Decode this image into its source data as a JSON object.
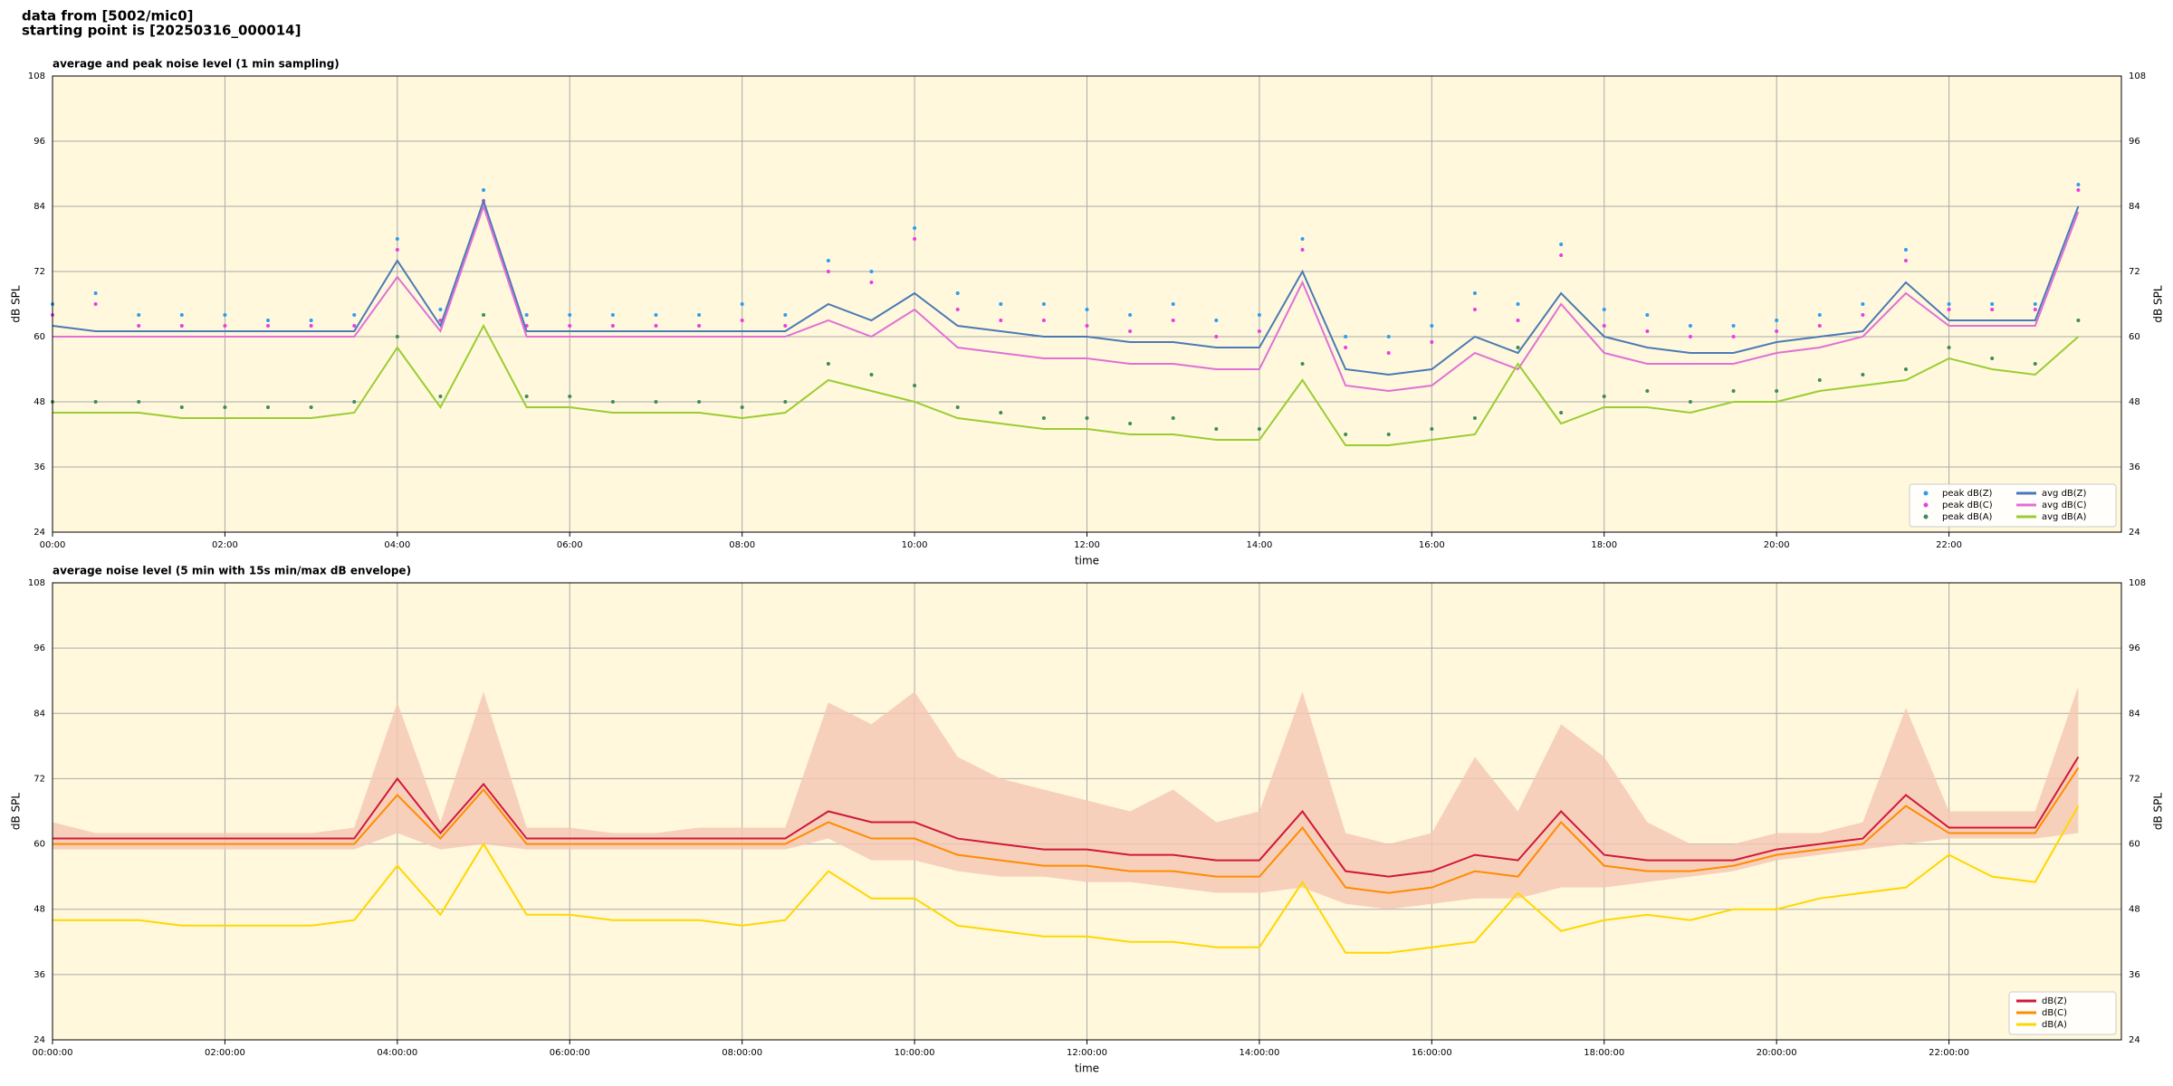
{
  "header": [
    "data from [5002/mic0]",
    "starting point is [20250316_000014]"
  ],
  "chart_data": [
    {
      "type": "line",
      "title": "average and peak noise level (1 min sampling)",
      "x_label": "time",
      "y_label": "dB SPL",
      "xlim": [
        0,
        24
      ],
      "ylim": [
        24,
        108
      ],
      "yticks": [
        24,
        36,
        48,
        60,
        72,
        84,
        96,
        108
      ],
      "xticks": [
        {
          "value": 0,
          "label": "00:00"
        },
        {
          "value": 2,
          "label": "02:00"
        },
        {
          "value": 4,
          "label": "04:00"
        },
        {
          "value": 6,
          "label": "06:00"
        },
        {
          "value": 8,
          "label": "08:00"
        },
        {
          "value": 10,
          "label": "10:00"
        },
        {
          "value": 12,
          "label": "12:00"
        },
        {
          "value": 14,
          "label": "14:00"
        },
        {
          "value": 16,
          "label": "16:00"
        },
        {
          "value": 18,
          "label": "18:00"
        },
        {
          "value": 20,
          "label": "20:00"
        },
        {
          "value": 22,
          "label": "22:00"
        }
      ],
      "grid": true,
      "legend": "lower right",
      "background": "#fff8dc",
      "x": [
        0,
        0.5,
        1,
        1.5,
        2,
        2.5,
        3,
        3.5,
        4,
        4.5,
        5,
        5.5,
        6,
        6.5,
        7,
        7.5,
        8,
        8.5,
        9,
        9.5,
        10,
        10.5,
        11,
        11.5,
        12,
        12.5,
        13,
        13.5,
        14,
        14.5,
        15,
        15.5,
        16,
        16.5,
        17,
        17.5,
        18,
        18.5,
        19,
        19.5,
        20,
        20.5,
        21,
        21.5,
        22,
        22.5,
        23,
        23.5
      ],
      "series": [
        {
          "name": "peak dB(Z)",
          "type": "scatter",
          "color": "#2a9df4",
          "values": [
            66,
            68,
            64,
            64,
            64,
            63,
            63,
            64,
            78,
            65,
            87,
            64,
            64,
            64,
            64,
            64,
            66,
            64,
            74,
            72,
            80,
            68,
            66,
            66,
            65,
            64,
            66,
            63,
            64,
            78,
            60,
            60,
            62,
            68,
            66,
            77,
            65,
            64,
            62,
            62,
            63,
            64,
            66,
            76,
            66,
            66,
            66,
            88
          ]
        },
        {
          "name": "peak dB(C)",
          "type": "scatter",
          "color": "#e83ee0",
          "values": [
            64,
            66,
            62,
            62,
            62,
            62,
            62,
            62,
            76,
            63,
            85,
            62,
            62,
            62,
            62,
            62,
            63,
            62,
            72,
            70,
            78,
            65,
            63,
            63,
            62,
            61,
            63,
            60,
            61,
            76,
            58,
            57,
            59,
            65,
            63,
            75,
            62,
            61,
            60,
            60,
            61,
            62,
            64,
            74,
            65,
            65,
            65,
            87
          ]
        },
        {
          "name": "peak dB(A)",
          "type": "scatter",
          "color": "#3c8c5a",
          "values": [
            48,
            48,
            48,
            47,
            47,
            47,
            47,
            48,
            60,
            49,
            64,
            49,
            49,
            48,
            48,
            48,
            47,
            48,
            55,
            53,
            51,
            47,
            46,
            45,
            45,
            44,
            45,
            43,
            43,
            55,
            42,
            42,
            43,
            45,
            58,
            46,
            49,
            50,
            48,
            50,
            50,
            52,
            53,
            54,
            58,
            56,
            55,
            63
          ]
        },
        {
          "name": "avg dB(Z)",
          "type": "line",
          "color": "#4a7ab5",
          "values": [
            62,
            61,
            61,
            61,
            61,
            61,
            61,
            61,
            74,
            62,
            85,
            61,
            61,
            61,
            61,
            61,
            61,
            61,
            66,
            63,
            68,
            62,
            61,
            60,
            60,
            59,
            59,
            58,
            58,
            72,
            54,
            53,
            54,
            60,
            57,
            68,
            60,
            58,
            57,
            57,
            59,
            60,
            61,
            70,
            63,
            63,
            63,
            84
          ]
        },
        {
          "name": "avg dB(C)",
          "type": "line",
          "color": "#e070d6",
          "values": [
            60,
            60,
            60,
            60,
            60,
            60,
            60,
            60,
            71,
            61,
            84,
            60,
            60,
            60,
            60,
            60,
            60,
            60,
            63,
            60,
            65,
            58,
            57,
            56,
            56,
            55,
            55,
            54,
            54,
            70,
            51,
            50,
            51,
            57,
            54,
            66,
            57,
            55,
            55,
            55,
            57,
            58,
            60,
            68,
            62,
            62,
            62,
            83
          ]
        },
        {
          "name": "avg dB(A)",
          "type": "line",
          "color": "#9acd32",
          "values": [
            46,
            46,
            46,
            45,
            45,
            45,
            45,
            46,
            58,
            47,
            62,
            47,
            47,
            46,
            46,
            46,
            45,
            46,
            52,
            50,
            48,
            45,
            44,
            43,
            43,
            42,
            42,
            41,
            41,
            52,
            40,
            40,
            41,
            42,
            55,
            44,
            47,
            47,
            46,
            48,
            48,
            50,
            51,
            52,
            56,
            54,
            53,
            60
          ]
        }
      ]
    },
    {
      "type": "line",
      "title": "average noise level (5 min with 15s min/max dB envelope)",
      "x_label": "time",
      "y_label": "dB SPL",
      "xlim": [
        0,
        24
      ],
      "ylim": [
        24,
        108
      ],
      "yticks": [
        24,
        36,
        48,
        60,
        72,
        84,
        96,
        108
      ],
      "xticks": [
        {
          "value": 0,
          "label": "00:00:00"
        },
        {
          "value": 2,
          "label": "02:00:00"
        },
        {
          "value": 4,
          "label": "04:00:00"
        },
        {
          "value": 6,
          "label": "06:00:00"
        },
        {
          "value": 8,
          "label": "08:00:00"
        },
        {
          "value": 10,
          "label": "10:00:00"
        },
        {
          "value": 12,
          "label": "12:00:00"
        },
        {
          "value": 14,
          "label": "14:00:00"
        },
        {
          "value": 16,
          "label": "16:00:00"
        },
        {
          "value": 18,
          "label": "18:00:00"
        },
        {
          "value": 20,
          "label": "20:00:00"
        },
        {
          "value": 22,
          "label": "22:00:00"
        }
      ],
      "grid": true,
      "legend": "lower right",
      "background": "#fff8dc",
      "x": [
        0,
        0.5,
        1,
        1.5,
        2,
        2.5,
        3,
        3.5,
        4,
        4.5,
        5,
        5.5,
        6,
        6.5,
        7,
        7.5,
        8,
        8.5,
        9,
        9.5,
        10,
        10.5,
        11,
        11.5,
        12,
        12.5,
        13,
        13.5,
        14,
        14.5,
        15,
        15.5,
        16,
        16.5,
        17,
        17.5,
        18,
        18.5,
        19,
        19.5,
        20,
        20.5,
        21,
        21.5,
        22,
        22.5,
        23,
        23.5
      ],
      "envelope": {
        "color": "#f5c6b4",
        "max": [
          64,
          62,
          62,
          62,
          62,
          62,
          62,
          63,
          86,
          64,
          88,
          63,
          63,
          62,
          62,
          63,
          63,
          63,
          86,
          82,
          88,
          76,
          72,
          70,
          68,
          66,
          70,
          64,
          66,
          88,
          62,
          60,
          62,
          76,
          66,
          82,
          76,
          64,
          60,
          60,
          62,
          62,
          64,
          85,
          66,
          66,
          66,
          89
        ],
        "min": [
          59,
          59,
          59,
          59,
          59,
          59,
          59,
          59,
          62,
          59,
          60,
          59,
          59,
          59,
          59,
          59,
          59,
          59,
          61,
          57,
          57,
          55,
          54,
          54,
          53,
          53,
          52,
          51,
          51,
          52,
          49,
          48,
          49,
          50,
          50,
          52,
          52,
          53,
          54,
          55,
          57,
          58,
          59,
          60,
          61,
          61,
          61,
          62
        ]
      },
      "series": [
        {
          "name": "dB(Z)",
          "type": "line",
          "color": "#d01838",
          "values": [
            61,
            61,
            61,
            61,
            61,
            61,
            61,
            61,
            72,
            62,
            71,
            61,
            61,
            61,
            61,
            61,
            61,
            61,
            66,
            64,
            64,
            61,
            60,
            59,
            59,
            58,
            58,
            57,
            57,
            66,
            55,
            54,
            55,
            58,
            57,
            66,
            58,
            57,
            57,
            57,
            59,
            60,
            61,
            69,
            63,
            63,
            63,
            76
          ]
        },
        {
          "name": "dB(C)",
          "type": "line",
          "color": "#ff8c00",
          "values": [
            60,
            60,
            60,
            60,
            60,
            60,
            60,
            60,
            69,
            61,
            70,
            60,
            60,
            60,
            60,
            60,
            60,
            60,
            64,
            61,
            61,
            58,
            57,
            56,
            56,
            55,
            55,
            54,
            54,
            63,
            52,
            51,
            52,
            55,
            54,
            64,
            56,
            55,
            55,
            56,
            58,
            59,
            60,
            67,
            62,
            62,
            62,
            74
          ]
        },
        {
          "name": "dB(A)",
          "type": "line",
          "color": "#ffd700",
          "values": [
            46,
            46,
            46,
            45,
            45,
            45,
            45,
            46,
            56,
            47,
            60,
            47,
            47,
            46,
            46,
            46,
            45,
            46,
            55,
            50,
            50,
            45,
            44,
            43,
            43,
            42,
            42,
            41,
            41,
            53,
            40,
            40,
            41,
            42,
            51,
            44,
            46,
            47,
            46,
            48,
            48,
            50,
            51,
            52,
            58,
            54,
            53,
            67
          ]
        }
      ]
    }
  ]
}
